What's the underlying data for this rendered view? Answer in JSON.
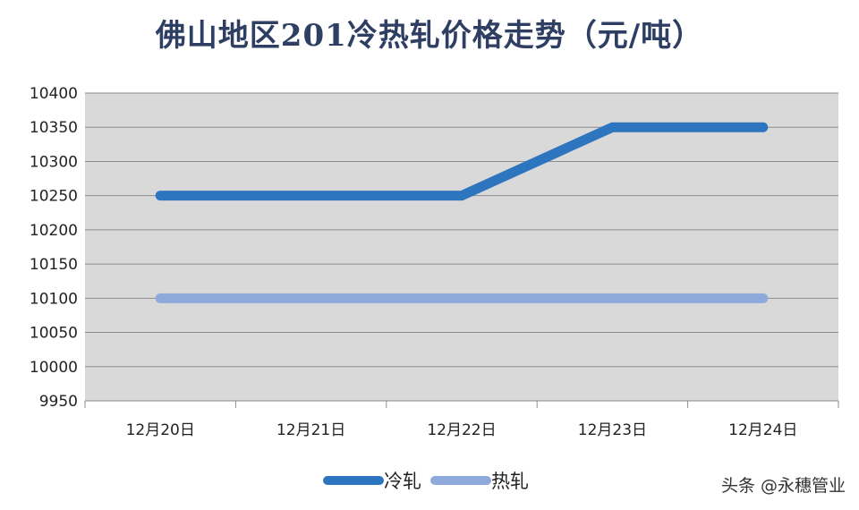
{
  "chart_data": {
    "type": "line",
    "title": "佛山地区201冷热轧价格走势（元/吨）",
    "xlabel": "",
    "ylabel": "",
    "categories": [
      "12月20日",
      "12月21日",
      "12月22日",
      "12月23日",
      "12月24日"
    ],
    "ylim": [
      9950,
      10400
    ],
    "yticks": [
      9950,
      10000,
      10050,
      10100,
      10150,
      10200,
      10250,
      10300,
      10350,
      10400
    ],
    "grid": true,
    "legend_position": "bottom",
    "series": [
      {
        "name": "冷轧",
        "values": [
          10250,
          10250,
          10250,
          10350,
          10350
        ],
        "color": "#2e75c0"
      },
      {
        "name": "热轧",
        "values": [
          10100,
          10100,
          10100,
          10100,
          10100
        ],
        "color": "#8eaadc"
      }
    ],
    "plot_background": "#d9d9d9",
    "gridline_color": "#8c8c8c"
  },
  "watermark": "头条 @永穗管业"
}
